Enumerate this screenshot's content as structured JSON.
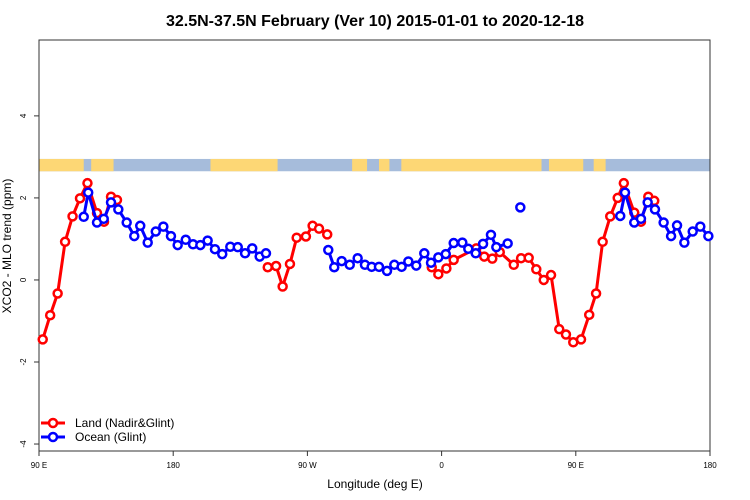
{
  "chart_data": {
    "type": "line",
    "title": "32.5N-37.5N February (Ver 10)   2015-01-01 to 2020-12-18",
    "xlabel": "Longitude (deg E)",
    "ylabel": "XCO2 - MLO trend (ppm)",
    "xlim": [
      90,
      540
    ],
    "ylim": [
      -4.17,
      5.85
    ],
    "x_ticks": [
      {
        "value": 90,
        "label": "90 E"
      },
      {
        "value": 180,
        "label": "180"
      },
      {
        "value": 270,
        "label": "90 W"
      },
      {
        "value": 360,
        "label": "0"
      },
      {
        "value": 450,
        "label": "90 E"
      },
      {
        "value": 540,
        "label": "180"
      }
    ],
    "y_ticks": [
      {
        "value": 4,
        "label": "4"
      },
      {
        "value": 2,
        "label": "2"
      },
      {
        "value": 0,
        "label": "0"
      },
      {
        "value": -2,
        "label": "-2"
      },
      {
        "value": -4,
        "label": "-4"
      }
    ],
    "grid": false,
    "legend_position": "bottom-left",
    "land_ocean_band": {
      "value_range": [
        2.65,
        2.95
      ],
      "land_color": "#fdd775",
      "ocean_color": "#a6bcdb",
      "land_segments": [
        [
          90,
          120
        ],
        [
          125,
          140
        ],
        [
          205,
          250
        ],
        [
          300,
          310
        ],
        [
          318,
          325
        ],
        [
          333,
          427
        ],
        [
          432,
          455
        ],
        [
          462,
          470
        ]
      ]
    },
    "series": [
      {
        "name": "Land (Nadir&Glint)",
        "color": "#ff0000",
        "points": [
          [
            92.5,
            -1.45
          ],
          [
            97.5,
            -0.86
          ],
          [
            102.5,
            -0.33
          ],
          [
            107.5,
            0.93
          ],
          [
            112.5,
            1.55
          ],
          [
            117.5,
            1.99
          ],
          [
            122.5,
            2.36
          ],
          [
            128.9,
            1.63
          ],
          [
            133.6,
            1.42
          ],
          [
            138.3,
            2.03
          ],
          [
            142.3,
            1.95
          ],
          null,
          [
            243.4,
            0.31
          ],
          [
            249,
            0.34
          ],
          [
            253.4,
            -0.16
          ],
          [
            258.3,
            0.39
          ],
          [
            262.8,
            1.03
          ],
          [
            269,
            1.06
          ],
          [
            273.5,
            1.32
          ],
          [
            277.8,
            1.25
          ],
          [
            283.3,
            1.11
          ],
          null,
          [
            353.4,
            0.31
          ],
          [
            357.8,
            0.14
          ],
          [
            363.2,
            0.28
          ],
          [
            368.1,
            0.49
          ],
          [
            383.3,
            0.77
          ],
          [
            388.6,
            0.57
          ],
          [
            394,
            0.52
          ],
          [
            399,
            0.68
          ],
          [
            408.4,
            0.37
          ],
          [
            413.3,
            0.53
          ],
          [
            418.4,
            0.54
          ],
          [
            423.5,
            0.26
          ],
          [
            428.5,
            0.0
          ],
          [
            433.4,
            0.12
          ],
          [
            438.9,
            -1.2
          ],
          [
            443.4,
            -1.33
          ],
          [
            448.3,
            -1.52
          ],
          [
            453.5,
            -1.45
          ],
          [
            459,
            -0.85
          ],
          [
            463.6,
            -0.33
          ],
          [
            468,
            0.93
          ],
          [
            473.1,
            1.55
          ],
          [
            478.1,
            2.0
          ],
          [
            482.2,
            2.36
          ],
          [
            489.2,
            1.64
          ],
          [
            493.7,
            1.42
          ],
          [
            498.6,
            2.03
          ],
          [
            502.6,
            1.93
          ]
        ]
      },
      {
        "name": "Ocean (Glint)",
        "color": "#0000ff",
        "points": [
          [
            120,
            1.54
          ],
          [
            123,
            2.13
          ],
          [
            128.9,
            1.4
          ],
          [
            133.4,
            1.49
          ],
          [
            138.3,
            1.89
          ],
          [
            143.2,
            1.72
          ],
          [
            148.8,
            1.4
          ],
          [
            153.9,
            1.07
          ],
          [
            157.9,
            1.32
          ],
          [
            162.9,
            0.91
          ],
          [
            168.3,
            1.18
          ],
          [
            173.4,
            1.3
          ],
          [
            178.5,
            1.07
          ],
          [
            183,
            0.85
          ],
          [
            188.4,
            0.98
          ],
          [
            193.3,
            0.87
          ],
          [
            198.2,
            0.85
          ],
          [
            203.1,
            0.96
          ],
          [
            208,
            0.75
          ],
          [
            212.9,
            0.63
          ],
          [
            218.3,
            0.81
          ],
          [
            223.3,
            0.8
          ],
          [
            228.2,
            0.65
          ],
          [
            233,
            0.77
          ],
          [
            238,
            0.57
          ],
          [
            242.2,
            0.65
          ],
          null,
          [
            284,
            0.73
          ],
          [
            288,
            0.31
          ],
          [
            293,
            0.46
          ],
          [
            298.4,
            0.37
          ],
          [
            303.7,
            0.53
          ],
          [
            308.6,
            0.37
          ],
          [
            313.1,
            0.32
          ],
          [
            318,
            0.32
          ],
          [
            323.4,
            0.22
          ],
          [
            328.3,
            0.37
          ],
          [
            333.2,
            0.32
          ],
          [
            337.7,
            0.45
          ],
          [
            343,
            0.35
          ],
          [
            348.4,
            0.65
          ],
          [
            352.9,
            0.42
          ],
          [
            357.8,
            0.55
          ],
          [
            362.8,
            0.63
          ],
          [
            368.1,
            0.9
          ],
          [
            373.9,
            0.91
          ],
          [
            377.9,
            0.76
          ],
          [
            382.9,
            0.65
          ],
          [
            387.8,
            0.88
          ],
          [
            393.1,
            1.1
          ],
          [
            396.7,
            0.8
          ],
          [
            404.3,
            0.89
          ],
          null,
          [
            412.8,
            1.77
          ],
          null,
          [
            479.8,
            1.56
          ],
          [
            483,
            2.13
          ],
          [
            489.2,
            1.4
          ],
          [
            493.7,
            1.49
          ],
          [
            498.2,
            1.89
          ],
          [
            503.1,
            1.72
          ],
          [
            508.9,
            1.4
          ],
          [
            513.9,
            1.07
          ],
          [
            517.9,
            1.33
          ],
          [
            522.8,
            0.91
          ],
          [
            528.4,
            1.18
          ],
          [
            533.5,
            1.3
          ],
          [
            538.9,
            1.07
          ]
        ]
      }
    ]
  }
}
